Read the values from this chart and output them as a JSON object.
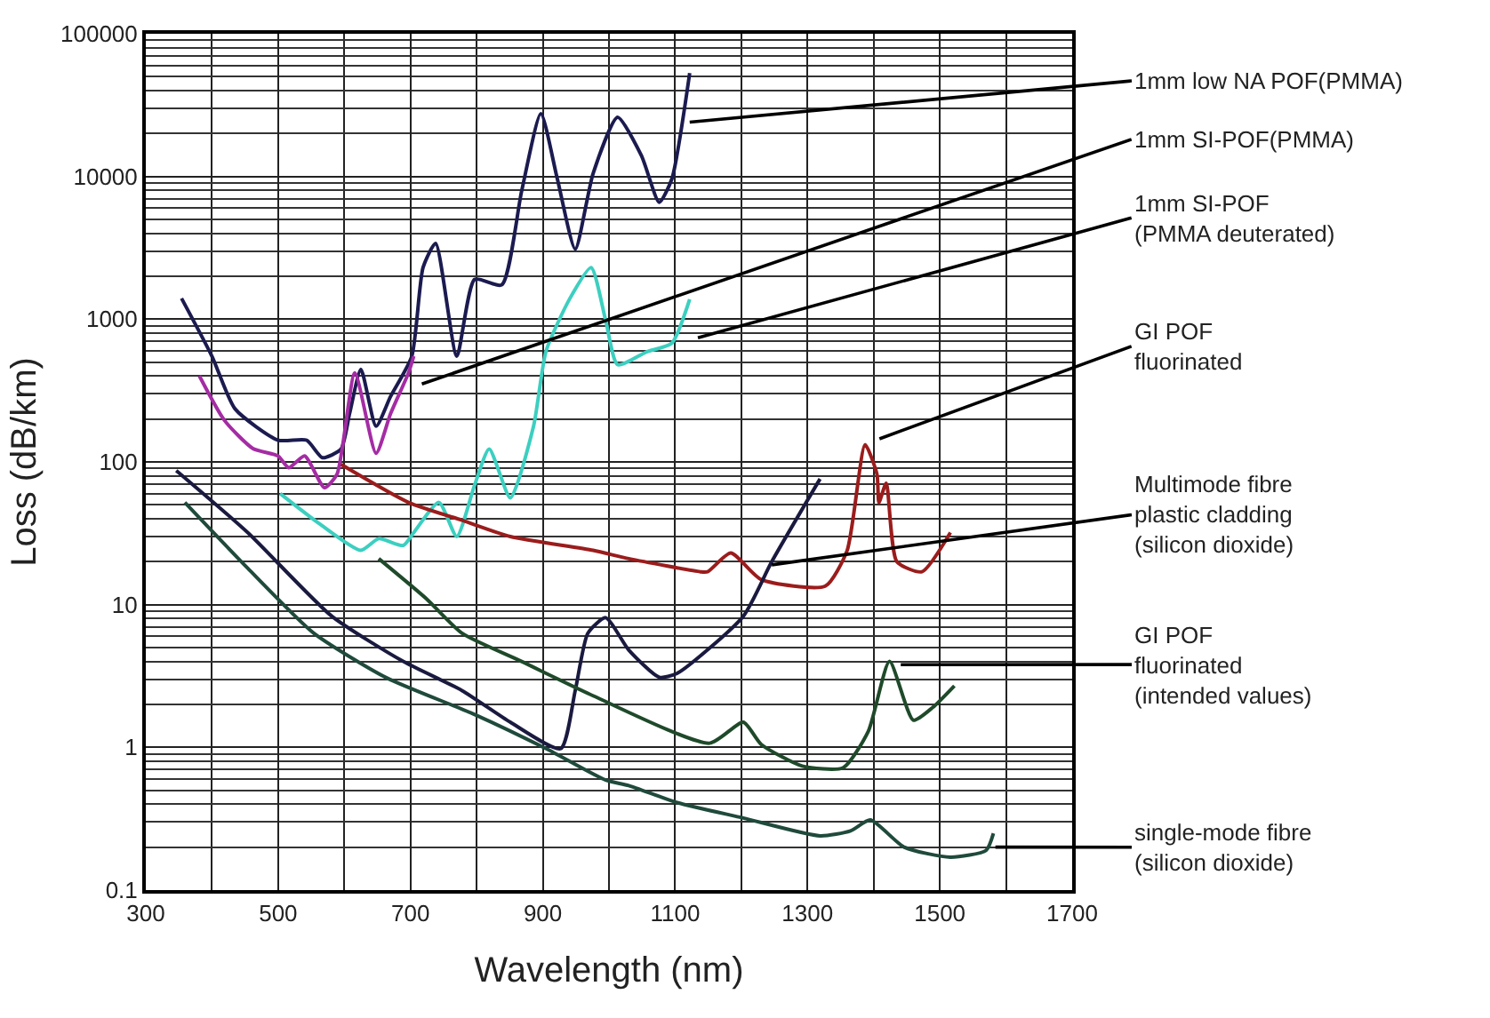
{
  "chart_data": {
    "type": "line",
    "xlabel": "Wavelength (nm)",
    "ylabel": "Loss (dB/km)",
    "log": "y",
    "grid": true,
    "marker": "none",
    "line_style": "solid",
    "xlim": [
      300,
      1700
    ],
    "xticks": [
      300,
      500,
      700,
      900,
      1100,
      1300,
      1500,
      1700
    ],
    "ylim": [
      0.1,
      100000
    ],
    "yticks": [
      0.1,
      1,
      10,
      100,
      1000,
      10000,
      100000
    ],
    "series": [
      {
        "color": "#1b1b50",
        "x": [
          354,
          400,
          435,
          500,
          543,
          567,
          595,
          608,
          625,
          648,
          670,
          702,
          719,
          738,
          770,
          797,
          838,
          868,
          897,
          922,
          949,
          976,
          1013,
          1049,
          1076,
          1095,
          1122
        ],
        "values": [
          1400,
          550,
          235,
          142,
          142,
          107,
          123,
          218,
          445,
          178,
          288,
          550,
          2300,
          3400,
          550,
          1900,
          1740,
          7900,
          27500,
          9600,
          3100,
          10500,
          26000,
          14000,
          6600,
          9600,
          53000
        ]
      },
      {
        "color": "#a42ca4",
        "x": [
          381,
          419,
          462,
          500,
          516,
          540,
          570,
          589,
          616,
          648,
          670,
          697,
          705
        ],
        "values": [
          400,
          195,
          124,
          110,
          91,
          110,
          66,
          82,
          420,
          115,
          218,
          420,
          550
        ]
      },
      {
        "color": "#3ccfc0",
        "x": [
          503,
          562,
          625,
          652,
          689,
          705,
          743,
          770,
          797,
          819,
          851,
          886,
          905,
          941,
          973,
          995,
          1013,
          1057,
          1095,
          1122
        ],
        "values": [
          60,
          37,
          24,
          29,
          26,
          32,
          52,
          30,
          69,
          123,
          56,
          178,
          600,
          1400,
          2300,
          980,
          480,
          590,
          680,
          1380
        ]
      },
      {
        "color": "#9b1c1c",
        "x": [
          595,
          697,
          778,
          851,
          976,
          1030,
          1138,
          1149,
          1184,
          1230,
          1327,
          1360,
          1387,
          1405,
          1408,
          1419,
          1435,
          1473,
          1516
        ],
        "values": [
          96,
          52,
          39,
          30,
          24,
          21,
          17,
          17,
          23,
          15,
          13.5,
          24,
          132,
          82,
          52,
          71,
          20,
          17,
          32
        ]
      },
      {
        "color": "#1a1a40",
        "x": [
          346,
          454,
          581,
          689,
          778,
          851,
          927,
          949,
          968,
          995,
          1030,
          1076,
          1103,
          1203,
          1246,
          1319
        ],
        "values": [
          87,
          32,
          8.3,
          4.0,
          2.5,
          1.5,
          0.98,
          2.5,
          6.3,
          8.1,
          4.8,
          3.1,
          3.3,
          8.3,
          20,
          76
        ]
      },
      {
        "color": "#1f4a2a",
        "x": [
          652,
          724,
          778,
          868,
          976,
          1152,
          1203,
          1230,
          1292,
          1354,
          1392,
          1424,
          1460,
          1489,
          1522
        ],
        "values": [
          21,
          11,
          6.3,
          4.0,
          2.3,
          1.07,
          1.5,
          1.05,
          0.74,
          0.72,
          1.3,
          4.0,
          1.55,
          1.9,
          2.7
        ]
      },
      {
        "color": "#1f4a3c",
        "x": [
          359,
          454,
          554,
          662,
          797,
          905,
          995,
          1030,
          1103,
          1203,
          1319,
          1365,
          1395,
          1446,
          1516,
          1570,
          1581
        ],
        "values": [
          52,
          18,
          6.3,
          3.1,
          1.7,
          0.98,
          0.59,
          0.54,
          0.41,
          0.32,
          0.24,
          0.26,
          0.31,
          0.2,
          0.17,
          0.19,
          0.25
        ]
      }
    ],
    "annotations": [
      {
        "text": "1mm low NA POF(PMMA)",
        "x": 1122,
        "y": 24000
      },
      "1mm SI-POF(PMMA)",
      "1mm SI-POF\n(PMMA deuterated)",
      "GI POF\nfluorinated",
      {
        "text": "Multimode fibre\nplastic cladding\n(silicon dioxide)",
        "x": 1246,
        "y": 19
      },
      {
        "text": "GI POF\nfluorinated\n(intended values)",
        "x": 1441,
        "y": 3.8
      },
      {
        "text": "single-mode fibre\n(silicon dioxide)",
        "x": 1584,
        "y": 0.2
      }
    ]
  }
}
